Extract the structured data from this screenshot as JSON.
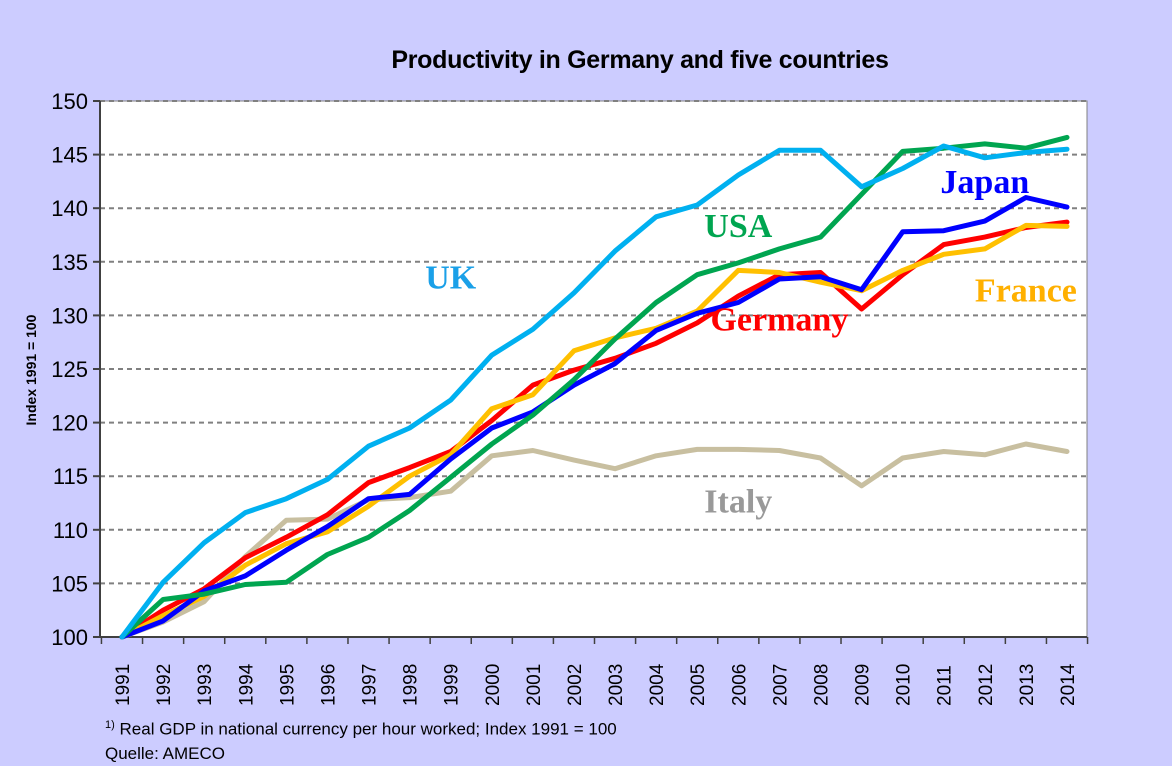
{
  "chart_data": {
    "type": "line",
    "title": "Productivity in Germany and five countries",
    "xlabel": "",
    "ylabel": "Index 1991 = 100",
    "ylim": [
      100,
      150
    ],
    "yticks": [
      "100",
      "105",
      "110",
      "115",
      "120",
      "125",
      "130",
      "135",
      "140",
      "145",
      "150"
    ],
    "grid": true,
    "x": [
      "1991",
      "1992",
      "1993",
      "1994",
      "1995",
      "1996",
      "1997",
      "1998",
      "1999",
      "2000",
      "2001",
      "2002",
      "2003",
      "2004",
      "2005",
      "2006",
      "2007",
      "2008",
      "2009",
      "2010",
      "2011",
      "2012",
      "2013",
      "2014"
    ],
    "series": [
      {
        "name": "Italy",
        "color": "#c8bfa0",
        "label_color": "#999999",
        "values": [
          100,
          101.4,
          103.3,
          107.5,
          110.9,
          111.0,
          112.8,
          113.0,
          113.6,
          116.9,
          117.4,
          116.5,
          115.7,
          116.9,
          117.5,
          117.5,
          117.4,
          116.7,
          114.1,
          116.7,
          117.3,
          117.0,
          118.0,
          117.3
        ]
      },
      {
        "name": "Germany",
        "color": "#ff0000",
        "label_color": "#ff0000",
        "values": [
          100,
          102.5,
          104.5,
          107.4,
          109.3,
          111.4,
          114.4,
          115.8,
          117.3,
          120.2,
          123.5,
          124.9,
          126.0,
          127.4,
          129.3,
          131.8,
          133.8,
          134.0,
          130.6,
          133.8,
          136.6,
          137.3,
          138.2,
          138.7
        ]
      },
      {
        "name": "France",
        "color": "#ffc000",
        "label_color": "#ffb000",
        "values": [
          100,
          102.0,
          103.8,
          106.7,
          108.7,
          109.8,
          112.2,
          115.0,
          117.0,
          121.3,
          122.6,
          126.7,
          127.9,
          128.8,
          130.4,
          134.2,
          134.0,
          133.1,
          132.3,
          134.2,
          135.7,
          136.2,
          138.4,
          138.3
        ]
      },
      {
        "name": "Japan",
        "color": "#0000ff",
        "label_color": "#0000ff",
        "values": [
          100,
          101.5,
          104.3,
          105.7,
          108.1,
          110.3,
          112.9,
          113.3,
          116.6,
          119.5,
          121.0,
          123.5,
          125.5,
          128.6,
          130.2,
          131.2,
          133.4,
          133.6,
          132.4,
          137.8,
          137.9,
          138.8,
          141.0,
          140.1
        ]
      },
      {
        "name": "USA",
        "color": "#00a550",
        "label_color": "#00a550",
        "values": [
          100,
          103.5,
          104.0,
          104.9,
          105.1,
          107.7,
          109.3,
          111.8,
          114.9,
          118.0,
          120.7,
          124.0,
          127.8,
          131.2,
          133.8,
          134.9,
          136.2,
          137.3,
          141.3,
          145.3,
          145.6,
          146.0,
          145.6,
          146.6
        ]
      },
      {
        "name": "UK",
        "color": "#00b0f0",
        "label_color": "#1aa0e8",
        "values": [
          100,
          105.1,
          108.8,
          111.6,
          112.9,
          114.7,
          117.8,
          119.5,
          122.1,
          126.3,
          128.7,
          132.1,
          136.0,
          139.2,
          140.3,
          143.1,
          145.4,
          145.4,
          142.0,
          143.7,
          145.8,
          144.7,
          145.2,
          145.5
        ]
      }
    ],
    "series_labels": [
      {
        "text": "UK",
        "series": "UK",
        "x": "1999",
        "y": 132.5
      },
      {
        "text": "USA",
        "series": "USA",
        "x": "2006",
        "y": 137.3
      },
      {
        "text": "Japan",
        "series": "Japan",
        "x": "2012",
        "y": 141.4
      },
      {
        "text": "France",
        "series": "France",
        "x": "2013",
        "y": 131.3
      },
      {
        "text": "Germany",
        "series": "Germany",
        "x": "2007",
        "y": 128.6
      },
      {
        "text": "Italy",
        "series": "Italy",
        "x": "2006",
        "y": 111.6
      }
    ]
  },
  "footnote": {
    "sup": "1)",
    "text": " Real GDP in national currency per hour worked; Index 1991 = 100",
    "source": "Quelle: AMECO"
  }
}
